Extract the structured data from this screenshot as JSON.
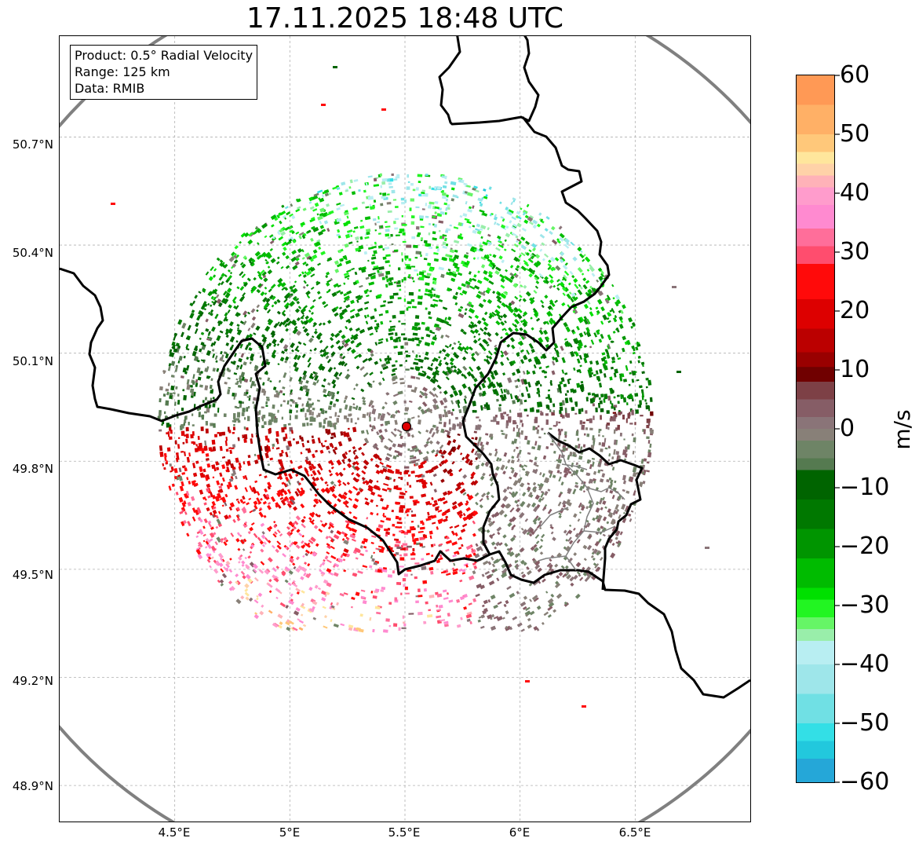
{
  "title": "17.11.2025 18:48 UTC",
  "info_box": {
    "product": "Product: 0.5° Radial Velocity",
    "range": "Range: 125 km",
    "source": "Data: RMIB"
  },
  "map": {
    "lat_ticks": [
      {
        "value": 50.7,
        "label": "50.7°N"
      },
      {
        "value": 50.4,
        "label": "50.4°N"
      },
      {
        "value": 50.1,
        "label": "50.1°N"
      },
      {
        "value": 49.8,
        "label": "49.8°N"
      },
      {
        "value": 49.5,
        "label": "49.5°N"
      },
      {
        "value": 49.2,
        "label": "49.2°N"
      },
      {
        "value": 48.9,
        "label": "48.9°N"
      }
    ],
    "lon_ticks": [
      {
        "value": 4.5,
        "label": "4.5°E"
      },
      {
        "value": 5.0,
        "label": "5°E"
      },
      {
        "value": 5.5,
        "label": "5.5°E"
      },
      {
        "value": 6.0,
        "label": "6°E"
      },
      {
        "value": 6.5,
        "label": "6.5°E"
      }
    ],
    "extent": {
      "lon_min": 4.0,
      "lon_max": 7.0,
      "lat_min": 48.8,
      "lat_max": 50.98
    },
    "radar_site": {
      "lon": 5.505,
      "lat": 49.914
    },
    "colors": {
      "range_ring": "#808080",
      "border": "#000000",
      "region_border": "#808080",
      "grid": "#b0b0b0",
      "site_marker": "#e00000"
    }
  },
  "colorbar": {
    "unit": "m/s",
    "min": -60,
    "max": 60,
    "tick_values": [
      60,
      50,
      40,
      30,
      20,
      10,
      0,
      -10,
      -20,
      -30,
      -40,
      -50,
      -60
    ],
    "tick_labels": [
      "60",
      "50",
      "40",
      "30",
      "20",
      "10",
      "0",
      "−10",
      "−20",
      "−30",
      "−40",
      "−50",
      "−60"
    ],
    "stops": [
      {
        "v": 60,
        "c": "#ff9955"
      },
      {
        "v": 55,
        "c": "#ffb066"
      },
      {
        "v": 50,
        "c": "#ffc87a"
      },
      {
        "v": 47,
        "c": "#ffe69c"
      },
      {
        "v": 45,
        "c": "#ffd2a8"
      },
      {
        "v": 43,
        "c": "#ffb2b8"
      },
      {
        "v": 41,
        "c": "#ff9ccc"
      },
      {
        "v": 38,
        "c": "#ff8ad0"
      },
      {
        "v": 34,
        "c": "#ff6e9a"
      },
      {
        "v": 31,
        "c": "#ff4d6e"
      },
      {
        "v": 28,
        "c": "#ff0a0a"
      },
      {
        "v": 22,
        "c": "#dd0000"
      },
      {
        "v": 17,
        "c": "#bb0000"
      },
      {
        "v": 13,
        "c": "#990000"
      },
      {
        "v": 10.5,
        "c": "#700000"
      },
      {
        "v": 8,
        "c": "#7d4046"
      },
      {
        "v": 5,
        "c": "#865d66"
      },
      {
        "v": 2,
        "c": "#8a7478"
      },
      {
        "v": 0,
        "c": "#888078"
      },
      {
        "v": -2,
        "c": "#6e8466"
      },
      {
        "v": -5,
        "c": "#557a50"
      },
      {
        "v": -7,
        "c": "#006400"
      },
      {
        "v": -12,
        "c": "#007800"
      },
      {
        "v": -17,
        "c": "#009500"
      },
      {
        "v": -22,
        "c": "#00bb00"
      },
      {
        "v": -27,
        "c": "#00e000"
      },
      {
        "v": -29,
        "c": "#22f522"
      },
      {
        "v": -32,
        "c": "#66f566"
      },
      {
        "v": -34,
        "c": "#99eeaa"
      },
      {
        "v": -36,
        "c": "#b8eef2"
      },
      {
        "v": -40,
        "c": "#9ee6ea"
      },
      {
        "v": -45,
        "c": "#70e0e4"
      },
      {
        "v": -50,
        "c": "#33dfe6"
      },
      {
        "v": -53,
        "c": "#22c8dd"
      },
      {
        "v": -56,
        "c": "#25a7d8"
      },
      {
        "v": -60,
        "c": "#1f7fc4"
      }
    ]
  }
}
